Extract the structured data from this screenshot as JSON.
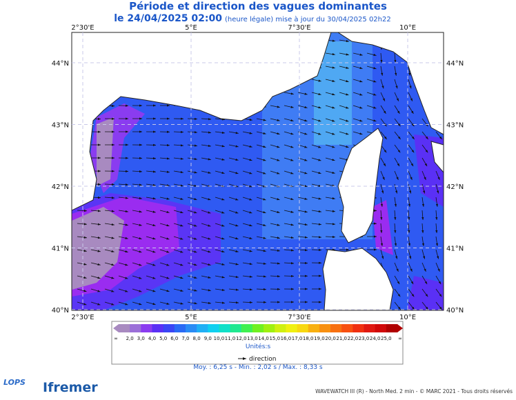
{
  "header": {
    "title": "Période et direction des vagues dominantes",
    "date": "le 24/04/2025 02:00",
    "update": "(heure légale) mise à jour du 30/04/2025 02h22"
  },
  "map": {
    "lon_ticks": [
      {
        "value": 2.5,
        "label": "2°30'E"
      },
      {
        "value": 5,
        "label": "5°E"
      },
      {
        "value": 7.5,
        "label": "7°30'E"
      },
      {
        "value": 10,
        "label": "10°E"
      }
    ],
    "lat_ticks": [
      {
        "value": 44,
        "label": "44°N"
      },
      {
        "value": 43,
        "label": "43°N"
      },
      {
        "value": 42,
        "label": "42°N"
      },
      {
        "value": 41,
        "label": "41°N"
      },
      {
        "value": 40,
        "label": "40°N"
      }
    ]
  },
  "legend": {
    "labels": [
      "∞",
      "2,0",
      "3,0",
      "4,0",
      "5,0",
      "6,0",
      "7,0",
      "8,0",
      "9,0",
      "10,0",
      "11,0",
      "12,0",
      "13,0",
      "14,0",
      "15,0",
      "16,0",
      "17,0",
      "18,0",
      "19,0",
      "20,0",
      "21,0",
      "22,0",
      "23,0",
      "24,0",
      "25,0",
      "∞"
    ],
    "colors": [
      "#a88ac0",
      "#9b6fd8",
      "#8a3cf0",
      "#5a30f5",
      "#3a45f5",
      "#2a6af5",
      "#2a8cf5",
      "#20b0f5",
      "#10d0f0",
      "#10e0c8",
      "#20e890",
      "#40f050",
      "#70f020",
      "#a0f010",
      "#d0f010",
      "#f0f010",
      "#f8d810",
      "#f8b010",
      "#f89010",
      "#f87010",
      "#f85010",
      "#f03010",
      "#e01810",
      "#d00808",
      "#b00000"
    ],
    "unit": "Unités:s",
    "direction": "direction",
    "stats": "Moy. : 6,25 s   -   Min. : 2,02 s / Max. : 8,33 s"
  },
  "footer": {
    "credit": "WAVEWATCH III (R) - North Med. 2 min - © MARC 2021 - Tous droits réservés",
    "logo1": "LOPS",
    "logo2": "Ifremer"
  }
}
